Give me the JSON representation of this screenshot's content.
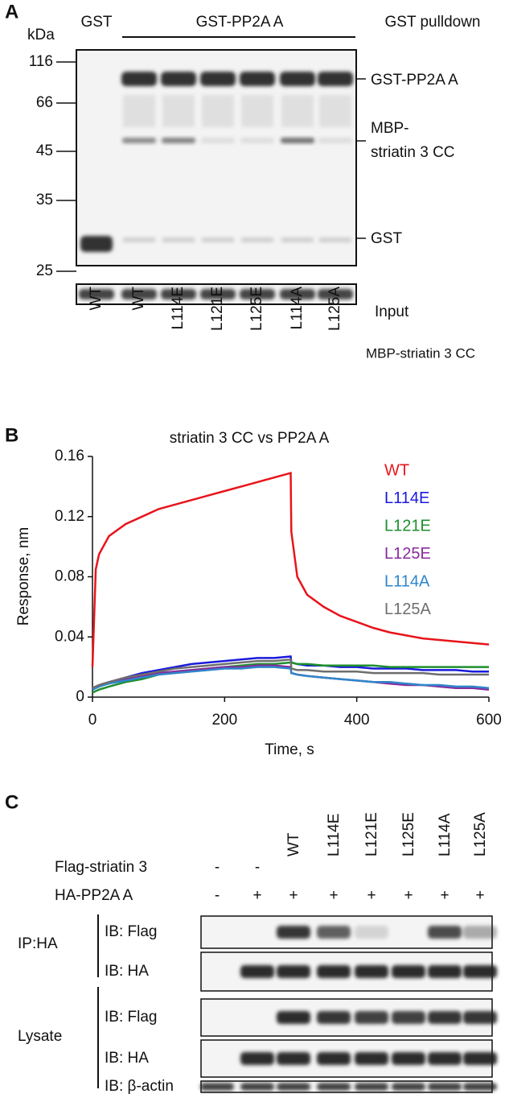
{
  "panel_a": {
    "label": "A",
    "gst": "GST",
    "construct": "GST-PP2A A",
    "assay": "GST pulldown",
    "kda_label": "kDa",
    "markers": [
      "116",
      "66",
      "45",
      "35",
      "25"
    ],
    "bands": [
      "GST-PP2A A",
      "MBP-",
      "striatin 3 CC",
      "GST"
    ],
    "input": "Input",
    "lanes": [
      "WT",
      "WT",
      "L114E",
      "L121E",
      "L125E",
      "L114A",
      "L125A"
    ],
    "lane_row_label": "MBP-striatin 3 CC"
  },
  "chart_data": {
    "type": "line",
    "panel_label": "B",
    "title": "striatin 3 CC vs PP2A A",
    "x_label": "Time, s",
    "y_label": "Response, nm",
    "x": [
      0,
      5,
      10,
      25,
      50,
      75,
      100,
      125,
      150,
      175,
      200,
      225,
      250,
      275,
      300,
      301,
      310,
      325,
      350,
      375,
      400,
      425,
      450,
      475,
      500,
      525,
      550,
      575,
      600
    ],
    "series": [
      {
        "name": "WT",
        "color": "#e8141b",
        "values": [
          0.02,
          0.085,
          0.095,
          0.107,
          0.115,
          0.12,
          0.125,
          0.128,
          0.131,
          0.134,
          0.137,
          0.14,
          0.143,
          0.146,
          0.149,
          0.11,
          0.08,
          0.068,
          0.06,
          0.054,
          0.05,
          0.046,
          0.043,
          0.041,
          0.039,
          0.038,
          0.037,
          0.036,
          0.035
        ]
      },
      {
        "name": "L114E",
        "color": "#1a1adb",
        "values": [
          0.005,
          0.006,
          0.007,
          0.01,
          0.013,
          0.016,
          0.018,
          0.02,
          0.022,
          0.023,
          0.024,
          0.025,
          0.026,
          0.026,
          0.027,
          0.023,
          0.022,
          0.021,
          0.021,
          0.02,
          0.02,
          0.019,
          0.019,
          0.019,
          0.018,
          0.018,
          0.018,
          0.017,
          0.017
        ]
      },
      {
        "name": "L121E",
        "color": "#1e8f2e",
        "values": [
          0.003,
          0.004,
          0.005,
          0.007,
          0.01,
          0.012,
          0.015,
          0.017,
          0.018,
          0.019,
          0.02,
          0.021,
          0.022,
          0.022,
          0.023,
          0.023,
          0.022,
          0.022,
          0.021,
          0.021,
          0.021,
          0.021,
          0.02,
          0.02,
          0.02,
          0.02,
          0.02,
          0.02,
          0.02
        ]
      },
      {
        "name": "L125E",
        "color": "#8a2a9e",
        "values": [
          0.006,
          0.007,
          0.008,
          0.01,
          0.012,
          0.014,
          0.016,
          0.017,
          0.018,
          0.019,
          0.02,
          0.02,
          0.021,
          0.021,
          0.02,
          0.016,
          0.015,
          0.014,
          0.013,
          0.012,
          0.011,
          0.01,
          0.009,
          0.008,
          0.008,
          0.007,
          0.006,
          0.006,
          0.005
        ]
      },
      {
        "name": "L114A",
        "color": "#2f86c9",
        "values": [
          0.005,
          0.006,
          0.007,
          0.009,
          0.011,
          0.013,
          0.015,
          0.016,
          0.017,
          0.018,
          0.019,
          0.019,
          0.02,
          0.02,
          0.019,
          0.016,
          0.015,
          0.014,
          0.013,
          0.012,
          0.011,
          0.01,
          0.01,
          0.009,
          0.008,
          0.008,
          0.007,
          0.007,
          0.006
        ]
      },
      {
        "name": "L125A",
        "color": "#6e6e6e",
        "values": [
          0.006,
          0.007,
          0.008,
          0.01,
          0.013,
          0.015,
          0.017,
          0.019,
          0.02,
          0.021,
          0.022,
          0.023,
          0.024,
          0.024,
          0.025,
          0.019,
          0.018,
          0.018,
          0.017,
          0.017,
          0.017,
          0.016,
          0.016,
          0.016,
          0.016,
          0.015,
          0.015,
          0.015,
          0.015
        ]
      }
    ],
    "xlim": [
      0,
      600
    ],
    "xticks": [
      0,
      200,
      400,
      600
    ],
    "ylim": [
      0,
      0.16
    ],
    "yticks": [
      0,
      0.04,
      0.08,
      0.12,
      0.16
    ],
    "legend": "upper right"
  },
  "panel_c": {
    "label": "C",
    "rows": [
      {
        "name": "Flag-striatin 3",
        "lanes": [
          "-",
          "-",
          "WT",
          "L114E",
          "L121E",
          "L125E",
          "L114A",
          "L125A"
        ]
      },
      {
        "name": "HA-PP2A A",
        "lanes": [
          "-",
          "+",
          "+",
          "+",
          "+",
          "+",
          "+",
          "+"
        ]
      }
    ],
    "groups": [
      {
        "name": "IP:HA",
        "blots": [
          "IB: Flag",
          "IB: HA"
        ]
      },
      {
        "name": "Lysate",
        "blots": [
          "IB: Flag",
          "IB: HA",
          "IB: β-actin"
        ]
      }
    ]
  }
}
